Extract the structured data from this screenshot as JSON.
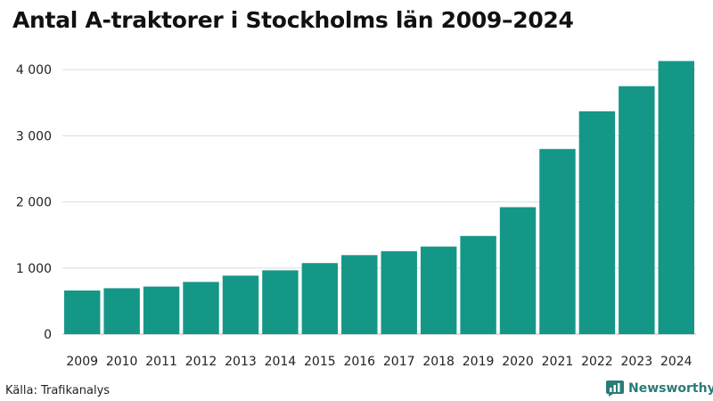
{
  "title": "Antal A-traktorer i Stockholms län 2009–2024",
  "source": "Källa: Trafikanalys",
  "brand": {
    "name": "Newsworthy",
    "icon": "newsworthy-logo-icon",
    "color": "#2a7b78"
  },
  "chart_data": {
    "type": "bar",
    "title": "Antal A-traktorer i Stockholms län 2009–2024",
    "categories": [
      "2009",
      "2010",
      "2011",
      "2012",
      "2013",
      "2014",
      "2015",
      "2016",
      "2017",
      "2018",
      "2019",
      "2020",
      "2021",
      "2022",
      "2023",
      "2024"
    ],
    "values": [
      660,
      695,
      720,
      790,
      885,
      965,
      1075,
      1195,
      1255,
      1325,
      1485,
      1920,
      2800,
      3370,
      3750,
      4130
    ],
    "ylim": [
      0,
      4150
    ],
    "yticks": [
      0,
      1000,
      2000,
      3000,
      4000
    ],
    "ytick_labels": [
      "0",
      "1 000",
      "2 000",
      "3 000",
      "4 000"
    ],
    "xlabel": "",
    "ylabel": "",
    "grid": true,
    "bar_color": "#159788"
  }
}
